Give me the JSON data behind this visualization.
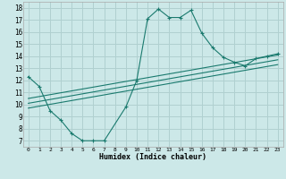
{
  "xlabel": "Humidex (Indice chaleur)",
  "bg_color": "#cce8e8",
  "grid_color": "#b0d0d0",
  "line_color": "#1a7a6e",
  "xlim": [
    -0.5,
    23.5
  ],
  "ylim": [
    6.5,
    18.5
  ],
  "xticks": [
    0,
    1,
    2,
    3,
    4,
    5,
    6,
    7,
    8,
    9,
    10,
    11,
    12,
    13,
    14,
    15,
    16,
    17,
    18,
    19,
    20,
    21,
    22,
    23
  ],
  "yticks": [
    7,
    8,
    9,
    10,
    11,
    12,
    13,
    14,
    15,
    16,
    17,
    18
  ],
  "curve1_x": [
    0,
    1,
    2,
    3,
    4,
    5,
    6,
    7,
    9,
    10,
    11,
    12,
    13,
    14,
    15,
    16,
    17,
    18,
    19,
    20,
    21,
    22,
    23
  ],
  "curve1_y": [
    12.3,
    11.5,
    9.5,
    8.7,
    7.6,
    7.0,
    7.0,
    7.0,
    9.8,
    12.0,
    17.1,
    17.9,
    17.2,
    17.2,
    17.8,
    15.9,
    14.7,
    13.9,
    13.5,
    13.2,
    13.8,
    14.0,
    14.2
  ],
  "line1_x": [
    0,
    23
  ],
  "line1_y": [
    9.7,
    13.3
  ],
  "line2_x": [
    0,
    23
  ],
  "line2_y": [
    10.1,
    13.7
  ],
  "line3_x": [
    0,
    23
  ],
  "line3_y": [
    10.5,
    14.1
  ]
}
